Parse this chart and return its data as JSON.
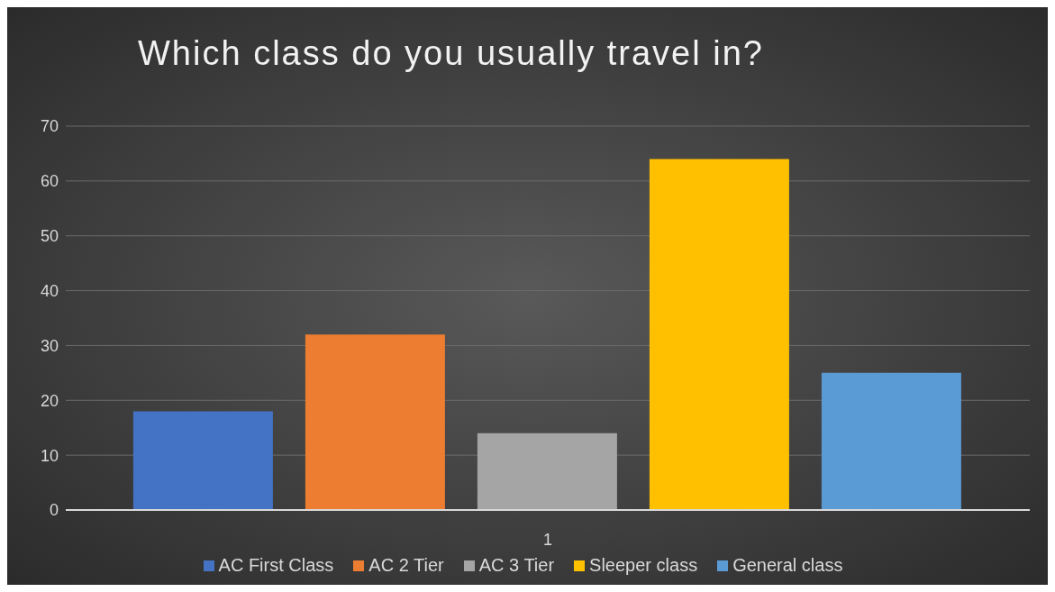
{
  "chart_data": {
    "type": "bar",
    "title": "Which class do you usually travel in?",
    "categories": [
      "1"
    ],
    "series": [
      {
        "name": "AC First Class",
        "color": "#4472c4",
        "values": [
          18
        ]
      },
      {
        "name": "AC 2 Tier",
        "color": "#ed7d31",
        "values": [
          32
        ]
      },
      {
        "name": "AC 3 Tier",
        "color": "#a5a5a5",
        "values": [
          14
        ]
      },
      {
        "name": "Sleeper class",
        "color": "#ffc000",
        "values": [
          64
        ]
      },
      {
        "name": "General class",
        "color": "#5b9bd5",
        "values": [
          25
        ]
      }
    ],
    "ylim": [
      0,
      70
    ],
    "yticks": [
      0,
      10,
      20,
      30,
      40,
      50,
      60,
      70
    ],
    "grid": "y",
    "legend": "bottom"
  }
}
